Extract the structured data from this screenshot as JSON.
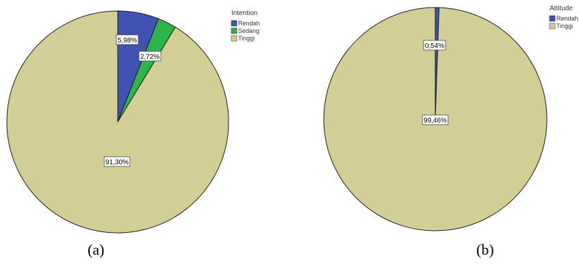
{
  "chart_data": [
    {
      "type": "pie",
      "legend_title": "Intention",
      "legend_position": "top-right",
      "caption": "(a)",
      "slices": [
        {
          "label": "Rendah",
          "value": 5.98,
          "value_label": "5,98%",
          "color": "#3f51b1"
        },
        {
          "label": "Sedang",
          "value": 2.72,
          "value_label": "2,72%",
          "color": "#2fb44b"
        },
        {
          "label": "Tinggi",
          "value": 91.3,
          "value_label": "91,30%",
          "color": "#d2ce96"
        }
      ]
    },
    {
      "type": "pie",
      "legend_title": "Attitude",
      "legend_position": "top-right",
      "caption": "(b)",
      "slices": [
        {
          "label": "Rendah",
          "value": 0.54,
          "value_label": "0,54%",
          "color": "#3f51b1"
        },
        {
          "label": "Tinggi",
          "value": 99.46,
          "value_label": "99,46%",
          "color": "#d2ce96"
        }
      ]
    }
  ]
}
